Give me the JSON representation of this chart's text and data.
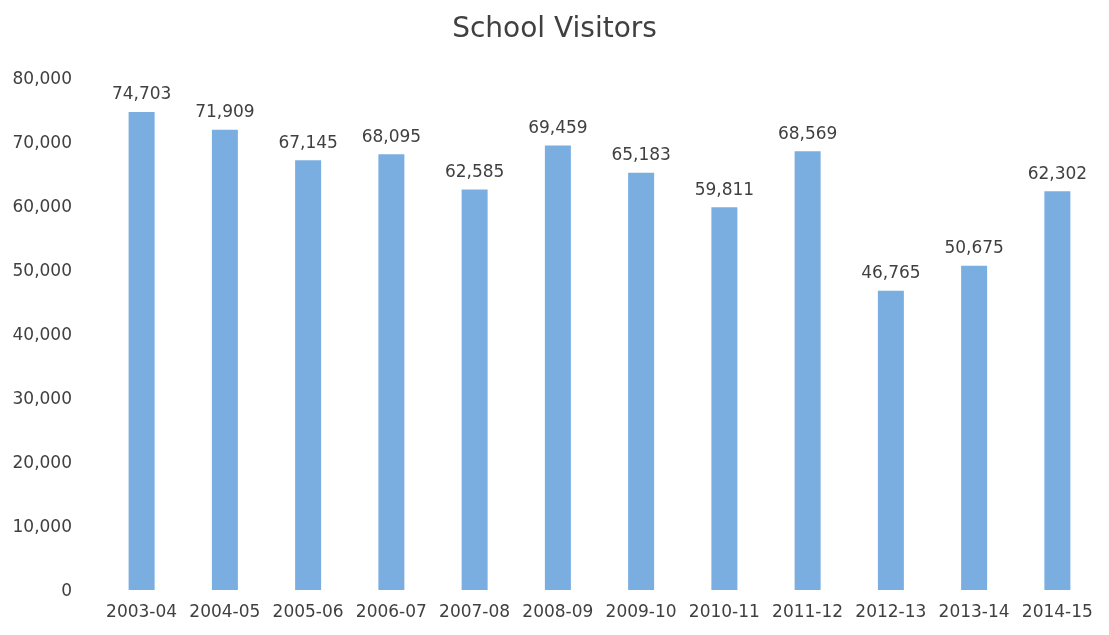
{
  "chart_data": {
    "type": "bar",
    "title": "School Visitors",
    "categories": [
      "2003-04",
      "2004-05",
      "2005-06",
      "2006-07",
      "2007-08",
      "2008-09",
      "2009-10",
      "2010-11",
      "2011-12",
      "2012-13",
      "2013-14",
      "2014-15"
    ],
    "values": [
      74703,
      71909,
      67145,
      68095,
      62585,
      69459,
      65183,
      59811,
      68569,
      46765,
      50675,
      62302
    ],
    "value_labels": [
      "74,703",
      "71,909",
      "67,145",
      "68,095",
      "62,585",
      "69,459",
      "65,183",
      "59,811",
      "68,569",
      "46,765",
      "50,675",
      "62,302"
    ],
    "color": "#7aaee0",
    "ylim": [
      0,
      80000
    ],
    "yticks": [
      0,
      {
        "value": 10000,
        "label": "10,000"
      },
      {
        "value": 20000,
        "label": "20,000"
      },
      {
        "value": 30000,
        "label": "30,000"
      },
      {
        "value": 40000,
        "label": "40,000"
      },
      {
        "value": 50000,
        "label": "50,000"
      },
      {
        "value": 60000,
        "label": "60,000"
      },
      {
        "value": 70000,
        "label": "70,000"
      },
      {
        "value": 80000,
        "label": "80,000"
      }
    ],
    "grid": false
  }
}
